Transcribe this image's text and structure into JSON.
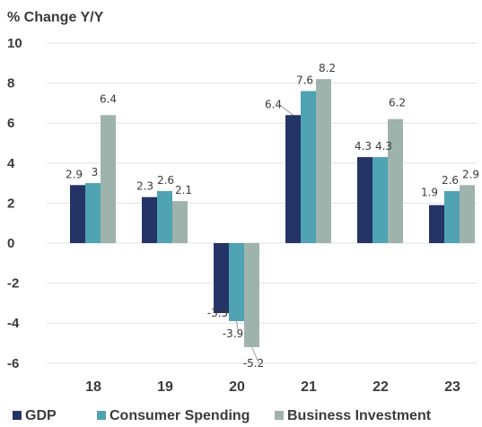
{
  "chart_data": {
    "type": "bar",
    "ylabel": "% Change Y/Y",
    "categories": [
      "18",
      "19",
      "20",
      "21",
      "22",
      "23"
    ],
    "ylim": [
      -6,
      10
    ],
    "yticks": [
      10,
      8,
      6,
      4,
      2,
      0,
      -2,
      -4,
      -6
    ],
    "grid": true,
    "legend_position": "bottom",
    "series": [
      {
        "name": "GDP",
        "color": "#253466",
        "values": [
          2.9,
          2.3,
          -3.5,
          6.4,
          4.3,
          1.9
        ],
        "labels": [
          "2.9",
          "2.3",
          "-3.5",
          "6.4",
          "4.3",
          "1.9"
        ]
      },
      {
        "name": "Consumer Spending",
        "color": "#4fa3b3",
        "values": [
          3,
          2.6,
          -3.9,
          7.6,
          4.3,
          2.6
        ],
        "labels": [
          "3",
          "2.6",
          "-3.9",
          "7.6",
          "4.3",
          "2.6"
        ]
      },
      {
        "name": "Business Investment",
        "color": "#9fb3ad",
        "values": [
          6.4,
          2.1,
          -5.2,
          8.2,
          6.2,
          2.9
        ],
        "labels": [
          "6.4",
          "2.1",
          "-5.2",
          "8.2",
          "6.2",
          "2.9"
        ]
      }
    ]
  }
}
